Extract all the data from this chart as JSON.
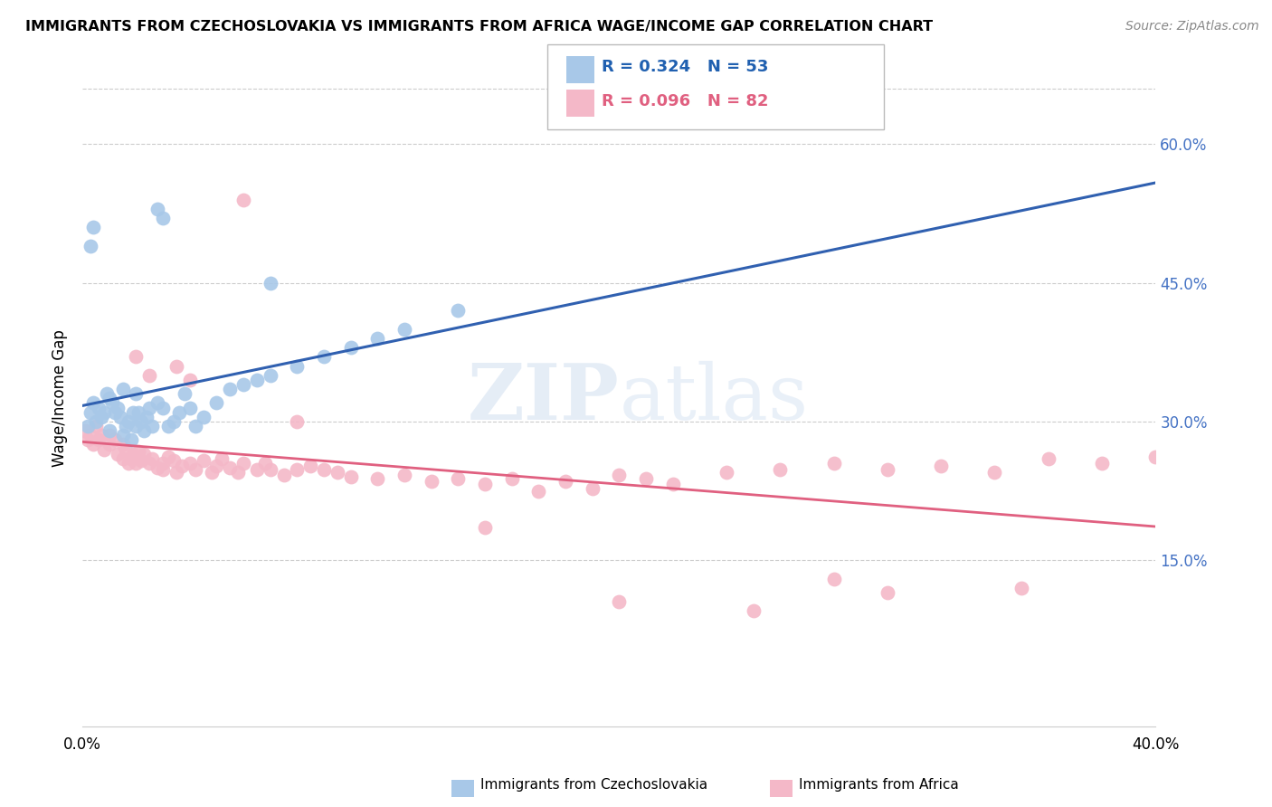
{
  "title": "IMMIGRANTS FROM CZECHOSLOVAKIA VS IMMIGRANTS FROM AFRICA WAGE/INCOME GAP CORRELATION CHART",
  "source": "Source: ZipAtlas.com",
  "ylabel": "Wage/Income Gap",
  "ytick_values": [
    0.15,
    0.3,
    0.45,
    0.6
  ],
  "ytick_labels": [
    "15.0%",
    "30.0%",
    "45.0%",
    "60.0%"
  ],
  "xlim": [
    0.0,
    0.4
  ],
  "ylim": [
    -0.03,
    0.68
  ],
  "watermark_zip": "ZIP",
  "watermark_atlas": "atlas",
  "legend_r1": "R = 0.324",
  "legend_n1": "N = 53",
  "legend_r2": "R = 0.096",
  "legend_n2": "N = 82",
  "color_czech": "#a8c8e8",
  "color_africa": "#f4b8c8",
  "color_line_czech": "#3060b0",
  "color_line_africa": "#e06080",
  "scatter_czech_x": [
    0.002,
    0.003,
    0.004,
    0.005,
    0.006,
    0.007,
    0.008,
    0.009,
    0.01,
    0.01,
    0.011,
    0.012,
    0.013,
    0.014,
    0.015,
    0.015,
    0.016,
    0.017,
    0.018,
    0.019,
    0.02,
    0.02,
    0.021,
    0.022,
    0.023,
    0.024,
    0.025,
    0.026,
    0.028,
    0.03,
    0.032,
    0.034,
    0.036,
    0.038,
    0.04,
    0.042,
    0.045,
    0.05,
    0.055,
    0.06,
    0.065,
    0.07,
    0.08,
    0.09,
    0.1,
    0.11,
    0.12,
    0.14,
    0.028,
    0.03,
    0.003,
    0.004,
    0.07
  ],
  "scatter_czech_y": [
    0.295,
    0.31,
    0.32,
    0.3,
    0.315,
    0.305,
    0.31,
    0.33,
    0.325,
    0.29,
    0.32,
    0.31,
    0.315,
    0.305,
    0.285,
    0.335,
    0.295,
    0.3,
    0.28,
    0.31,
    0.33,
    0.295,
    0.31,
    0.3,
    0.29,
    0.305,
    0.315,
    0.295,
    0.32,
    0.315,
    0.295,
    0.3,
    0.31,
    0.33,
    0.315,
    0.295,
    0.305,
    0.32,
    0.335,
    0.34,
    0.345,
    0.35,
    0.36,
    0.37,
    0.38,
    0.39,
    0.4,
    0.42,
    0.53,
    0.52,
    0.49,
    0.51,
    0.45
  ],
  "scatter_africa_x": [
    0.001,
    0.002,
    0.003,
    0.004,
    0.005,
    0.006,
    0.007,
    0.008,
    0.01,
    0.01,
    0.012,
    0.013,
    0.015,
    0.015,
    0.016,
    0.017,
    0.018,
    0.019,
    0.02,
    0.021,
    0.022,
    0.023,
    0.025,
    0.026,
    0.028,
    0.03,
    0.03,
    0.032,
    0.034,
    0.035,
    0.037,
    0.04,
    0.042,
    0.045,
    0.048,
    0.05,
    0.052,
    0.055,
    0.058,
    0.06,
    0.065,
    0.068,
    0.07,
    0.075,
    0.08,
    0.085,
    0.09,
    0.095,
    0.1,
    0.11,
    0.12,
    0.13,
    0.14,
    0.15,
    0.16,
    0.17,
    0.18,
    0.19,
    0.2,
    0.21,
    0.22,
    0.24,
    0.26,
    0.28,
    0.3,
    0.32,
    0.34,
    0.36,
    0.38,
    0.4,
    0.35,
    0.28,
    0.15,
    0.2,
    0.25,
    0.3,
    0.02,
    0.025,
    0.035,
    0.04,
    0.06,
    0.08
  ],
  "scatter_africa_y": [
    0.29,
    0.28,
    0.285,
    0.275,
    0.295,
    0.28,
    0.285,
    0.27,
    0.285,
    0.275,
    0.28,
    0.265,
    0.275,
    0.26,
    0.27,
    0.255,
    0.26,
    0.265,
    0.255,
    0.268,
    0.258,
    0.265,
    0.255,
    0.26,
    0.25,
    0.255,
    0.248,
    0.262,
    0.258,
    0.245,
    0.252,
    0.255,
    0.248,
    0.258,
    0.245,
    0.252,
    0.26,
    0.25,
    0.245,
    0.255,
    0.248,
    0.255,
    0.248,
    0.242,
    0.248,
    0.252,
    0.248,
    0.245,
    0.24,
    0.238,
    0.242,
    0.235,
    0.238,
    0.232,
    0.238,
    0.225,
    0.235,
    0.228,
    0.242,
    0.238,
    0.232,
    0.245,
    0.248,
    0.255,
    0.248,
    0.252,
    0.245,
    0.26,
    0.255,
    0.262,
    0.12,
    0.13,
    0.185,
    0.105,
    0.095,
    0.115,
    0.37,
    0.35,
    0.36,
    0.345,
    0.54,
    0.3
  ]
}
